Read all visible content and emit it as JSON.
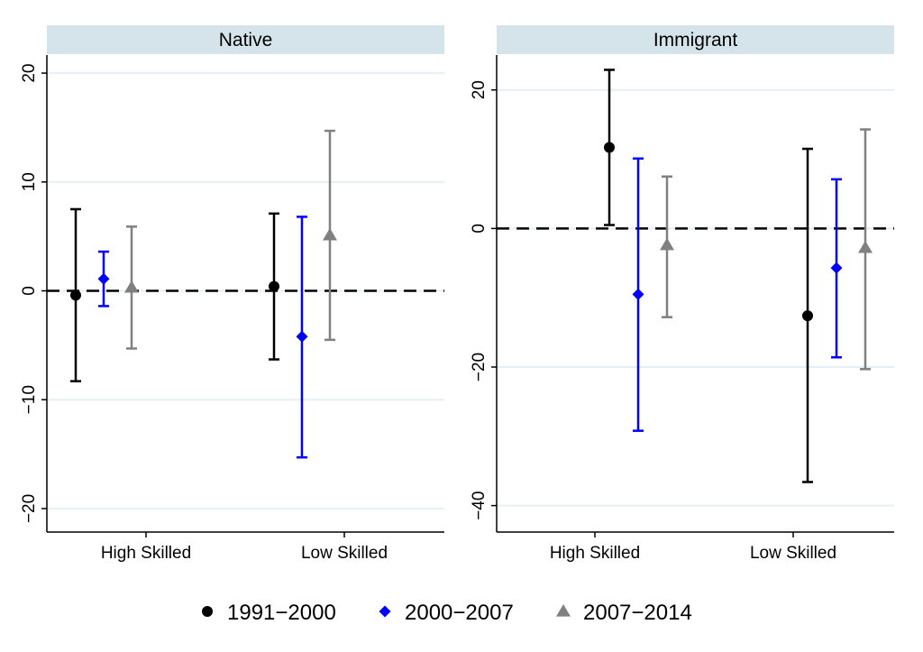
{
  "colors": {
    "series": [
      "#000000",
      "#0000ff",
      "#808080"
    ],
    "panel_header": "#d5e4eb",
    "gridline": "#e6eff3",
    "zero_line": "#000000"
  },
  "chart_data": [
    {
      "type": "errorbar",
      "title": "Native",
      "categories": [
        "High Skilled",
        "Low Skilled"
      ],
      "ylim": [
        -21,
        21
      ],
      "yticks": [
        {
          "value": 20,
          "label": "20"
        },
        {
          "value": 10,
          "label": "10"
        },
        {
          "value": 0,
          "label": "0"
        },
        {
          "value": -10,
          "label": "−10"
        },
        {
          "value": -20,
          "label": "−20"
        }
      ],
      "grid": true,
      "reference_line": 0,
      "series": [
        {
          "name": "1991−2000",
          "marker": "circle",
          "estimates": [
            -0.4,
            0.4
          ],
          "lower": [
            -8.3,
            -6.3
          ],
          "upper": [
            7.5,
            7.1
          ]
        },
        {
          "name": "2000−2007",
          "marker": "diamond",
          "estimates": [
            1.1,
            -4.2
          ],
          "lower": [
            -1.4,
            -15.3
          ],
          "upper": [
            3.6,
            6.8
          ]
        },
        {
          "name": "2007−2014",
          "marker": "triangle",
          "estimates": [
            0.3,
            5.1
          ],
          "lower": [
            -5.3,
            -4.5
          ],
          "upper": [
            5.9,
            14.7
          ]
        }
      ]
    },
    {
      "type": "errorbar",
      "title": "Immigrant",
      "categories": [
        "High Skilled",
        "Low Skilled"
      ],
      "ylim": [
        -42,
        24
      ],
      "yticks": [
        {
          "value": 20,
          "label": "20"
        },
        {
          "value": 0,
          "label": "0"
        },
        {
          "value": -20,
          "label": "−20"
        },
        {
          "value": -40,
          "label": "−40"
        }
      ],
      "grid": true,
      "reference_line": 0,
      "series": [
        {
          "name": "1991−2000",
          "marker": "circle",
          "estimates": [
            11.7,
            -12.6
          ],
          "lower": [
            0.5,
            -36.6
          ],
          "upper": [
            22.9,
            11.5
          ]
        },
        {
          "name": "2000−2007",
          "marker": "diamond",
          "estimates": [
            -9.5,
            -5.7
          ],
          "lower": [
            -29.2,
            -18.6
          ],
          "upper": [
            10.1,
            7.1
          ]
        },
        {
          "name": "2007−2014",
          "marker": "triangle",
          "estimates": [
            -2.4,
            -2.8
          ],
          "lower": [
            -12.8,
            -20.3
          ],
          "upper": [
            7.5,
            14.3
          ]
        }
      ]
    }
  ],
  "legend": {
    "position": "bottom",
    "items": [
      {
        "label": "1991−2000",
        "marker": "circle"
      },
      {
        "label": "2000−2007",
        "marker": "diamond"
      },
      {
        "label": "2007−2014",
        "marker": "triangle"
      }
    ]
  }
}
